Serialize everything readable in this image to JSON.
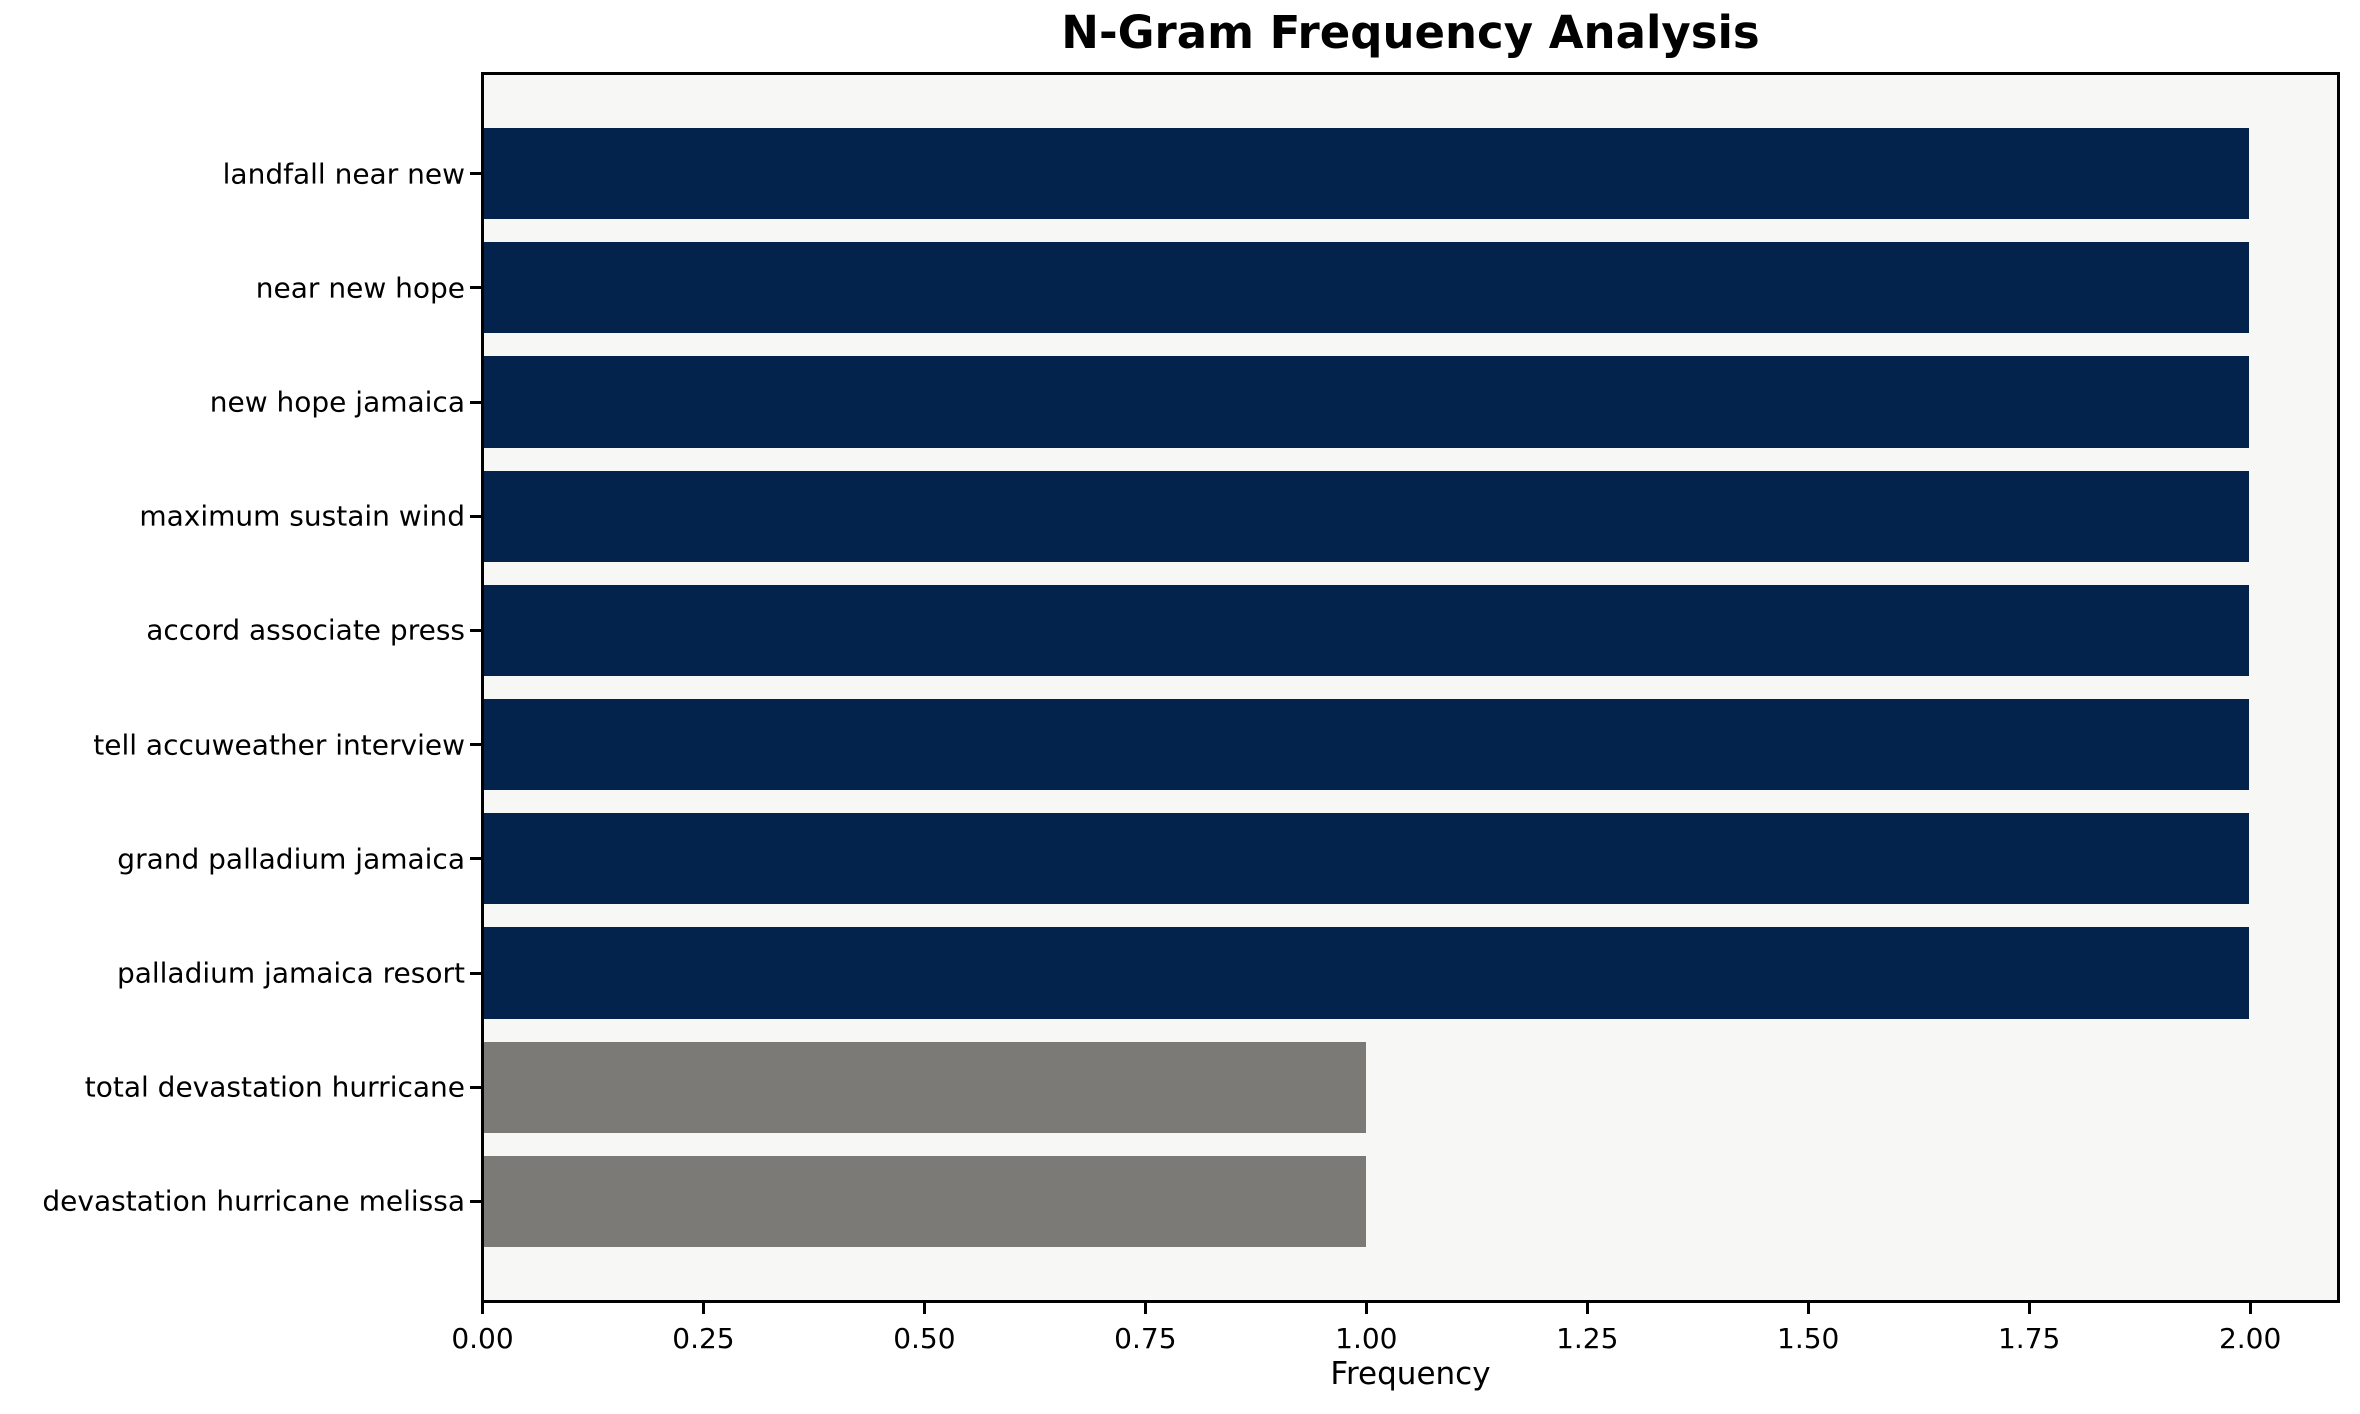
{
  "figure": {
    "title": "N-Gram Frequency Analysis",
    "xlabel": "Frequency"
  },
  "colors": {
    "primary_bar": "#03224c",
    "secondary_bar": "#7b7a76",
    "plot_background": "#f7f7f6",
    "figure_background": "#ffffff",
    "spine": "#000000",
    "text": "#000000"
  },
  "chart_data": {
    "type": "bar",
    "orientation": "horizontal",
    "title": "N-Gram Frequency Analysis",
    "xlabel": "Frequency",
    "ylabel": "",
    "categories": [
      "landfall near new",
      "near new hope",
      "new hope jamaica",
      "maximum sustain wind",
      "accord associate press",
      "tell accuweather interview",
      "grand palladium jamaica",
      "palladium jamaica resort",
      "total devastation hurricane",
      "devastation hurricane melissa"
    ],
    "values": [
      2,
      2,
      2,
      2,
      2,
      2,
      2,
      2,
      1,
      1
    ],
    "bar_colors": [
      "#03224c",
      "#03224c",
      "#03224c",
      "#03224c",
      "#03224c",
      "#03224c",
      "#03224c",
      "#03224c",
      "#7b7a76",
      "#7b7a76"
    ],
    "xlim": [
      0,
      2.1
    ],
    "xticks": [
      0,
      0.25,
      0.5,
      0.75,
      1.0,
      1.25,
      1.5,
      1.75,
      2.0
    ],
    "xtick_labels": [
      "0.00",
      "0.25",
      "0.50",
      "0.75",
      "1.00",
      "1.25",
      "1.50",
      "1.75",
      "2.00"
    ],
    "grid": false,
    "legend": null
  }
}
